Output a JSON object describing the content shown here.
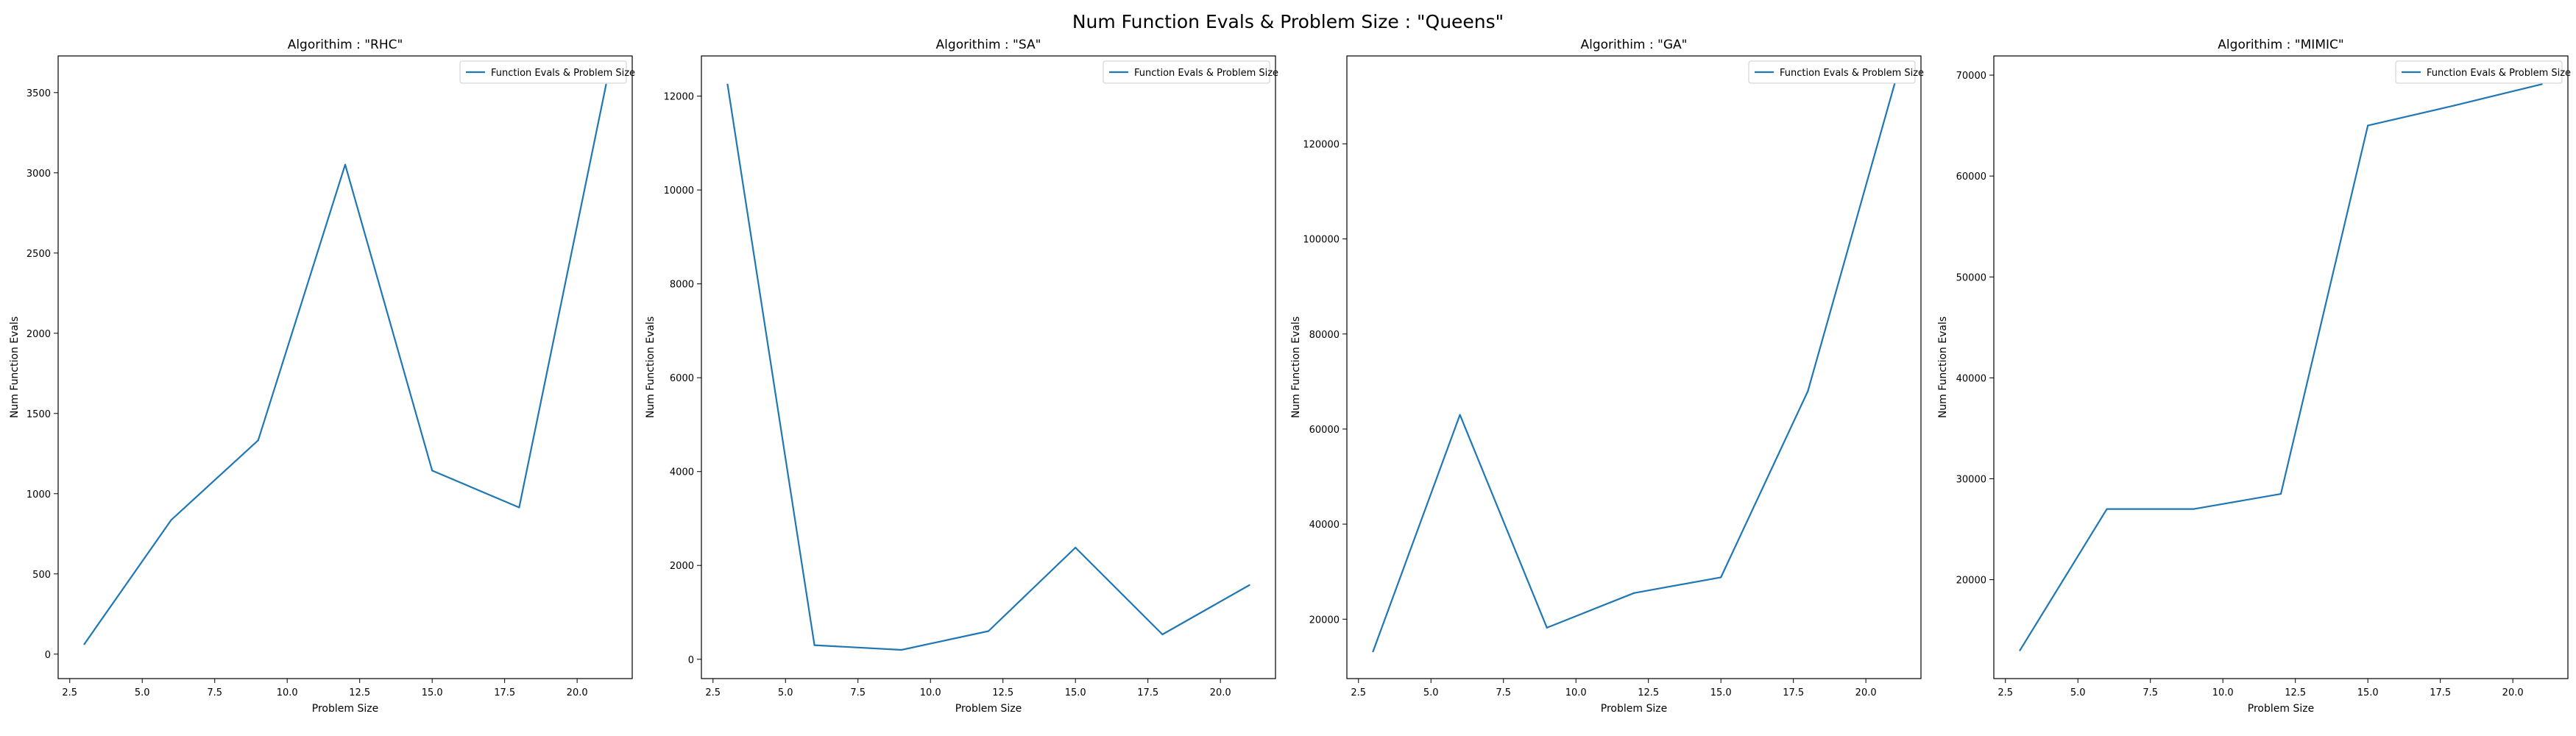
{
  "figure": {
    "suptitle": "Num Function Evals & Problem Size : \"Queens\""
  },
  "colors": {
    "line": "#1f77b4",
    "axes": "#000000",
    "legend_border": "#cccccc",
    "background": "#ffffff"
  },
  "chart_data": [
    {
      "type": "line",
      "title": "Algorithim : \"RHC\"",
      "xlabel": "Problem Size",
      "ylabel": "Num Function Evals",
      "xlim": [
        2.1,
        21.9
      ],
      "ylim": [
        -152.5,
        3728.5
      ],
      "xticks": [
        2.5,
        5.0,
        7.5,
        10.0,
        12.5,
        15.0,
        17.5,
        20.0
      ],
      "xtick_labels": [
        "2.5",
        "5.0",
        "7.5",
        "10.0",
        "12.5",
        "15.0",
        "17.5",
        "20.0"
      ],
      "yticks": [
        0,
        500,
        1000,
        1500,
        2000,
        2500,
        3000,
        3500
      ],
      "ytick_labels": [
        "0",
        "500",
        "1000",
        "1500",
        "2000",
        "2500",
        "3000",
        "3500"
      ],
      "legend": {
        "position": "upper right",
        "entries": [
          "Function Evals & Problem Size"
        ]
      },
      "grid": false,
      "series": [
        {
          "name": "Function Evals & Problem Size",
          "x": [
            3,
            6,
            9,
            12,
            15,
            18,
            21
          ],
          "y": [
            62,
            836,
            1333,
            3051,
            1144,
            914,
            3550
          ]
        }
      ]
    },
    {
      "type": "line",
      "title": "Algorithim : \"SA\"",
      "xlabel": "Problem Size",
      "ylabel": "Num Function Evals",
      "xlim": [
        2.1,
        21.9
      ],
      "ylim": [
        -411.5,
        12856.5
      ],
      "xticks": [
        2.5,
        5.0,
        7.5,
        10.0,
        12.5,
        15.0,
        17.5,
        20.0
      ],
      "xtick_labels": [
        "2.5",
        "5.0",
        "7.5",
        "10.0",
        "12.5",
        "15.0",
        "17.5",
        "20.0"
      ],
      "yticks": [
        0,
        2000,
        4000,
        6000,
        8000,
        10000,
        12000
      ],
      "ytick_labels": [
        "0",
        "2000",
        "4000",
        "6000",
        "8000",
        "10000",
        "12000"
      ],
      "legend": {
        "position": "upper right",
        "entries": [
          "Function Evals & Problem Size"
        ]
      },
      "grid": false,
      "series": [
        {
          "name": "Function Evals & Problem Size",
          "x": [
            3,
            6,
            9,
            12,
            15,
            18,
            21
          ],
          "y": [
            12250,
            300,
            200,
            600,
            2380,
            530,
            1580
          ]
        }
      ]
    },
    {
      "type": "line",
      "title": "Algorithim : \"GA\"",
      "xlabel": "Problem Size",
      "ylabel": "Num Function Evals",
      "xlim": [
        2.1,
        21.9
      ],
      "ylim": [
        7500,
        138500
      ],
      "xticks": [
        2.5,
        5.0,
        7.5,
        10.0,
        12.5,
        15.0,
        17.5,
        20.0
      ],
      "xtick_labels": [
        "2.5",
        "5.0",
        "7.5",
        "10.0",
        "12.5",
        "15.0",
        "17.5",
        "20.0"
      ],
      "yticks": [
        20000,
        40000,
        60000,
        80000,
        100000,
        120000
      ],
      "ytick_labels": [
        "20000",
        "40000",
        "60000",
        "80000",
        "100000",
        "120000"
      ],
      "legend": {
        "position": "upper right",
        "entries": [
          "Function Evals & Problem Size"
        ]
      },
      "grid": false,
      "series": [
        {
          "name": "Function Evals & Problem Size",
          "x": [
            3,
            6,
            9,
            12,
            15,
            18,
            21
          ],
          "y": [
            13200,
            63000,
            18200,
            25500,
            28800,
            68000,
            132800
          ]
        }
      ]
    },
    {
      "type": "line",
      "title": "Algorithim : \"MIMIC\"",
      "xlabel": "Problem Size",
      "ylabel": "Num Function Evals",
      "xlim": [
        2.1,
        21.9
      ],
      "ylim": [
        10200,
        71900
      ],
      "xticks": [
        2.5,
        5.0,
        7.5,
        10.0,
        12.5,
        15.0,
        17.5,
        20.0
      ],
      "xtick_labels": [
        "2.5",
        "5.0",
        "7.5",
        "10.0",
        "12.5",
        "15.0",
        "17.5",
        "20.0"
      ],
      "yticks": [
        20000,
        30000,
        40000,
        50000,
        60000,
        70000
      ],
      "ytick_labels": [
        "20000",
        "30000",
        "40000",
        "50000",
        "60000",
        "70000"
      ],
      "legend": {
        "position": "upper right",
        "entries": [
          "Function Evals & Problem Size"
        ]
      },
      "grid": false,
      "series": [
        {
          "name": "Function Evals & Problem Size",
          "x": [
            3,
            6,
            9,
            12,
            15,
            18,
            21
          ],
          "y": [
            13000,
            27000,
            27000,
            28500,
            65000,
            67000,
            69100
          ]
        }
      ]
    }
  ]
}
